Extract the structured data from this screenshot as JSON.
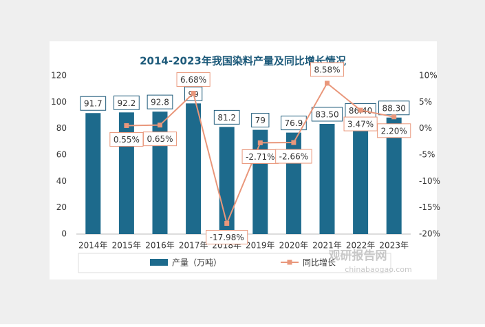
{
  "chart_data": {
    "type": "bar-line",
    "title": "2014-2023年我国染料产量及同比增长情况",
    "categories": [
      "2014年",
      "2015年",
      "2016年",
      "2017年",
      "2018年",
      "2019年",
      "2020年",
      "2021年",
      "2022年",
      "2023年"
    ],
    "series": [
      {
        "name": "产量（万吨）",
        "type": "bar",
        "color": "#1d6a8c",
        "values": [
          91.7,
          92.2,
          92.8,
          99,
          81.2,
          79,
          76.9,
          83.5,
          86.4,
          88.3
        ],
        "value_labels": [
          "91.7",
          "92.2",
          "92.8",
          "99",
          "81.2",
          "79",
          "76.9",
          "83.50",
          "86.40",
          "88.30"
        ]
      },
      {
        "name": "同比增长",
        "type": "line",
        "axis": "y2",
        "color": "#e9977b",
        "values": [
          null,
          0.55,
          0.65,
          6.68,
          -17.98,
          -2.71,
          -2.66,
          8.58,
          3.47,
          2.2
        ],
        "value_labels": [
          null,
          "0.55%",
          "0.65%",
          "6.68%",
          "-17.98%",
          "-2.71%",
          "-2.66%",
          "8.58%",
          "3.47%",
          "2.20%"
        ]
      }
    ],
    "ylim": [
      0,
      120
    ],
    "yticks": [
      0,
      20,
      40,
      60,
      80,
      100,
      120
    ],
    "y2lim": [
      -20,
      10
    ],
    "y2ticks": [
      {
        "value": -20,
        "label": "-20%"
      },
      {
        "value": -15,
        "label": "-15%"
      },
      {
        "value": -10,
        "label": "-10%"
      },
      {
        "value": -5,
        "label": "-5%"
      },
      {
        "value": 0,
        "label": "0%"
      },
      {
        "value": 5,
        "label": "5%"
      },
      {
        "value": 10,
        "label": "10%"
      }
    ],
    "grid": false,
    "legend": "bottom",
    "watermark": {
      "name": "观研报告网",
      "url": "chinabaogao.com"
    }
  }
}
